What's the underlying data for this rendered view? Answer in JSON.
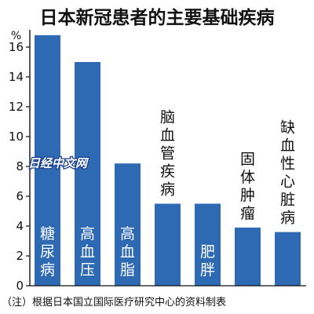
{
  "chart_data": {
    "type": "bar",
    "title": "日本新冠患者的主要基础疾病",
    "unit": "%",
    "categories": [
      "糖尿病",
      "高血压",
      "高血脂",
      "脑血管疾病",
      "肥胖",
      "固体肿瘤",
      "缺血性心脏病"
    ],
    "values": [
      16.8,
      15.0,
      8.2,
      5.5,
      5.5,
      3.9,
      3.6
    ],
    "ylim": [
      0,
      17
    ],
    "yticks": [
      "0",
      "2",
      "4",
      "6",
      "8",
      "10",
      "12",
      "14",
      "16"
    ],
    "note": "（注）根据日本国立国际医疗研究中心的资料制表",
    "watermark": "日经中文网",
    "bar_color": "#2e6ab3",
    "grid": false
  }
}
